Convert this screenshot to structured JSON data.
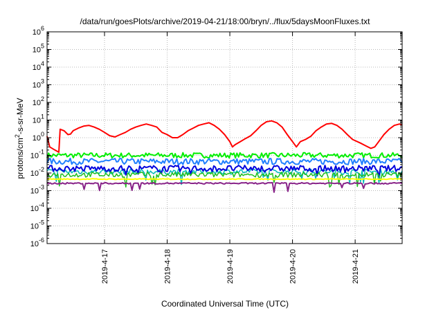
{
  "chart_data": {
    "type": "line",
    "title": "/data/run/goesPlots/archive/2019-04-21/18:00/bryn/../flux/5daysMoonFluxes.txt",
    "xlabel": "Coordinated Universal Time (UTC)",
    "ylabel_main": "protons/cm",
    "ylabel_sup": "2",
    "ylabel_rest": "-s-sr-MeV",
    "x_range": [
      "2019-04-16T02:00",
      "2019-04-21T18:00"
    ],
    "x_ticks": [
      "2019-4-17",
      "2019-4-18",
      "2019-4-19",
      "2019-4-20",
      "2019-4-21"
    ],
    "y_scale": "log",
    "y_range": [
      1e-06,
      1000000.0
    ],
    "y_ticks": [
      {
        "base": "10",
        "exp": "-6"
      },
      {
        "base": "10",
        "exp": "-5"
      },
      {
        "base": "10",
        "exp": "-4"
      },
      {
        "base": "10",
        "exp": "-3"
      },
      {
        "base": "10",
        "exp": "-2"
      },
      {
        "base": "10",
        "exp": "-1"
      },
      {
        "base": "10",
        "exp": "0"
      },
      {
        "base": "10",
        "exp": "1"
      },
      {
        "base": "10",
        "exp": "2"
      },
      {
        "base": "10",
        "exp": "3"
      },
      {
        "base": "10",
        "exp": "4"
      },
      {
        "base": "10",
        "exp": "5"
      },
      {
        "base": "10",
        "exp": "6"
      }
    ],
    "grid": true,
    "series": [
      {
        "color": "#ff0000",
        "width": 2,
        "points": [
          [
            "2019-04-16T02:00",
            1.2
          ],
          [
            "2019-04-16T03:00",
            0.3
          ],
          [
            "2019-04-16T05:00",
            0.2
          ],
          [
            "2019-04-16T06:30",
            0.15
          ],
          [
            "2019-04-16T07:00",
            3
          ],
          [
            "2019-04-16T08:30",
            2.5
          ],
          [
            "2019-04-16T10:00",
            1.5
          ],
          [
            "2019-04-16T11:00",
            1.6
          ],
          [
            "2019-04-16T12:00",
            2.5
          ],
          [
            "2019-04-16T14:00",
            3.5
          ],
          [
            "2019-04-16T16:00",
            4.5
          ],
          [
            "2019-04-16T18:00",
            5
          ],
          [
            "2019-04-16T20:00",
            4
          ],
          [
            "2019-04-16T22:00",
            3
          ],
          [
            "2019-04-17T00:00",
            2
          ],
          [
            "2019-04-17T02:00",
            1.3
          ],
          [
            "2019-04-17T04:00",
            1.1
          ],
          [
            "2019-04-17T06:00",
            1.5
          ],
          [
            "2019-04-17T08:00",
            2
          ],
          [
            "2019-04-17T10:00",
            3
          ],
          [
            "2019-04-17T12:00",
            4
          ],
          [
            "2019-04-17T14:00",
            5
          ],
          [
            "2019-04-17T16:00",
            6
          ],
          [
            "2019-04-17T18:00",
            5
          ],
          [
            "2019-04-17T20:00",
            4
          ],
          [
            "2019-04-17T22:00",
            2
          ],
          [
            "2019-04-18T00:00",
            1.5
          ],
          [
            "2019-04-18T02:00",
            1
          ],
          [
            "2019-04-18T04:00",
            1
          ],
          [
            "2019-04-18T06:00",
            1.5
          ],
          [
            "2019-04-18T08:00",
            2.5
          ],
          [
            "2019-04-18T10:00",
            3.5
          ],
          [
            "2019-04-18T12:00",
            5
          ],
          [
            "2019-04-18T14:00",
            6
          ],
          [
            "2019-04-18T16:00",
            7
          ],
          [
            "2019-04-18T18:00",
            5
          ],
          [
            "2019-04-18T20:00",
            3
          ],
          [
            "2019-04-18T22:00",
            1.5
          ],
          [
            "2019-04-19T00:00",
            0.6
          ],
          [
            "2019-04-19T01:00",
            0.3
          ],
          [
            "2019-04-19T02:00",
            0.4
          ],
          [
            "2019-04-19T04:00",
            0.6
          ],
          [
            "2019-04-19T06:00",
            0.9
          ],
          [
            "2019-04-19T08:00",
            1.3
          ],
          [
            "2019-04-19T10:00",
            2.5
          ],
          [
            "2019-04-19T12:00",
            5
          ],
          [
            "2019-04-19T14:00",
            8
          ],
          [
            "2019-04-19T16:00",
            9
          ],
          [
            "2019-04-19T18:00",
            7
          ],
          [
            "2019-04-19T20:00",
            4
          ],
          [
            "2019-04-19T22:00",
            1.5
          ],
          [
            "2019-04-20T00:00",
            0.6
          ],
          [
            "2019-04-20T01:30",
            0.3
          ],
          [
            "2019-04-20T03:00",
            0.6
          ],
          [
            "2019-04-20T05:00",
            0.8
          ],
          [
            "2019-04-20T07:00",
            1.2
          ],
          [
            "2019-04-20T09:00",
            2.5
          ],
          [
            "2019-04-20T11:00",
            4
          ],
          [
            "2019-04-20T13:00",
            6
          ],
          [
            "2019-04-20T15:00",
            6.5
          ],
          [
            "2019-04-20T17:00",
            5
          ],
          [
            "2019-04-20T19:00",
            3
          ],
          [
            "2019-04-20T21:00",
            1.5
          ],
          [
            "2019-04-20T23:00",
            0.8
          ],
          [
            "2019-04-21T02:00",
            0.5
          ],
          [
            "2019-04-21T04:00",
            0.35
          ],
          [
            "2019-04-21T06:00",
            0.25
          ],
          [
            "2019-04-21T07:30",
            0.3
          ],
          [
            "2019-04-21T09:00",
            0.6
          ],
          [
            "2019-04-21T11:00",
            1.5
          ],
          [
            "2019-04-21T13:00",
            3
          ],
          [
            "2019-04-21T15:00",
            5
          ],
          [
            "2019-04-21T17:00",
            6
          ],
          [
            "2019-04-21T18:00",
            5.5
          ]
        ]
      },
      {
        "color": "#00ee00",
        "width": 2,
        "base": 0.1,
        "jitter": 0.3,
        "dips": 0.0
      },
      {
        "color": "#1f7fff",
        "width": 2,
        "base": 0.045,
        "jitter": 0.35,
        "dips": 0.0
      },
      {
        "color": "#00bbbb",
        "width": 1.5,
        "base": 0.012,
        "jitter": 0.3,
        "dips": 0.4
      },
      {
        "color": "#0000dd",
        "width": 2,
        "base": 0.018,
        "jitter": 0.35,
        "dips": 0.2
      },
      {
        "color": "#1fbf1f",
        "width": 1.5,
        "base": 0.008,
        "jitter": 0.3,
        "dips": 0.45
      },
      {
        "color": "#ffff00",
        "width": 2,
        "base": 0.0045,
        "jitter": 0.05,
        "dips": 0.0
      },
      {
        "color": "#882288",
        "width": 2,
        "base": 0.0026,
        "jitter": 0.08,
        "dips": 0.35
      }
    ]
  }
}
